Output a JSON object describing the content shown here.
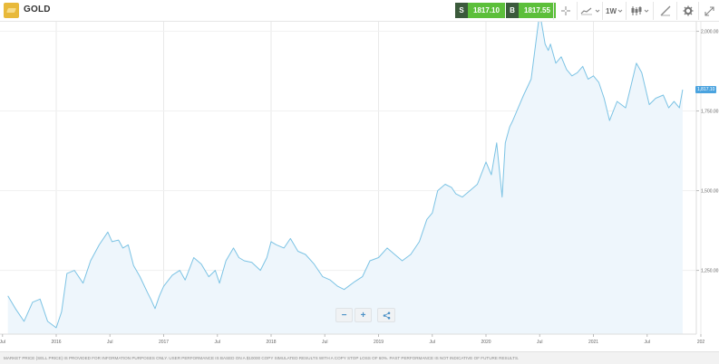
{
  "header": {
    "instrument": "GOLD",
    "sell_label": "S",
    "sell_price": "1817.10",
    "buy_label": "B",
    "buy_price": "1817.55",
    "timeframe": "1W"
  },
  "colors": {
    "sell_dark": "#3b5a3b",
    "price_green": "#5cbf3a",
    "line": "#7cc3e4",
    "area": "#eef6fc",
    "badge": "#4aa3df"
  },
  "icons": [
    "gold-logo-icon",
    "crosshair-icon",
    "chart-type-icon",
    "chevron-down-icon",
    "candles-icon",
    "draw-tool-icon",
    "gear-icon",
    "expand-icon",
    "zoom-out-icon",
    "zoom-in-icon",
    "share-icon"
  ],
  "chart_data": {
    "type": "area",
    "x_ticks": [
      "Jul",
      "2016",
      "Jul",
      "2017",
      "Jul",
      "2018",
      "Jul",
      "2019",
      "Jul",
      "2020",
      "Jul",
      "2021",
      "Jul",
      "202"
    ],
    "y_ticks": [
      "2,000.00",
      "1,750.00",
      "1,500.00",
      "1,250.00"
    ],
    "y_tick_values": [
      2000,
      1750,
      1500,
      1250
    ],
    "ylim": [
      1050,
      2030
    ],
    "current_price_label": "1,817.10",
    "current_price": 1817.1,
    "x": [
      2015.55,
      2015.62,
      2015.7,
      2015.78,
      2015.85,
      2015.92,
      2016.0,
      2016.05,
      2016.1,
      2016.17,
      2016.25,
      2016.32,
      2016.4,
      2016.48,
      2016.52,
      2016.58,
      2016.62,
      2016.67,
      2016.72,
      2016.78,
      2016.85,
      2016.88,
      2016.92,
      2016.96,
      2017.0,
      2017.08,
      2017.15,
      2017.2,
      2017.28,
      2017.35,
      2017.42,
      2017.48,
      2017.52,
      2017.58,
      2017.65,
      2017.7,
      2017.75,
      2017.82,
      2017.9,
      2017.96,
      2018.0,
      2018.05,
      2018.12,
      2018.18,
      2018.25,
      2018.32,
      2018.4,
      2018.48,
      2018.55,
      2018.62,
      2018.68,
      2018.72,
      2018.78,
      2018.85,
      2018.92,
      2019.0,
      2019.08,
      2019.15,
      2019.22,
      2019.3,
      2019.38,
      2019.45,
      2019.5,
      2019.55,
      2019.62,
      2019.68,
      2019.72,
      2019.78,
      2019.85,
      2019.92,
      2020.0,
      2020.05,
      2020.1,
      2020.15,
      2020.18,
      2020.22,
      2020.25,
      2020.3,
      2020.35,
      2020.42,
      2020.5,
      2020.55,
      2020.58,
      2020.6,
      2020.65,
      2020.7,
      2020.75,
      2020.8,
      2020.85,
      2020.9,
      2020.95,
      2021.0,
      2021.05,
      2021.1,
      2021.15,
      2021.22,
      2021.3,
      2021.35,
      2021.4,
      2021.45,
      2021.52,
      2021.58,
      2021.65,
      2021.7,
      2021.75,
      2021.8,
      2021.83
    ],
    "series": [
      {
        "values": [
          1170,
          1130,
          1090,
          1150,
          1160,
          1090,
          1070,
          1120,
          1240,
          1250,
          1210,
          1280,
          1330,
          1370,
          1340,
          1345,
          1320,
          1330,
          1265,
          1230,
          1180,
          1160,
          1130,
          1170,
          1200,
          1235,
          1250,
          1220,
          1290,
          1270,
          1230,
          1250,
          1210,
          1280,
          1320,
          1290,
          1280,
          1275,
          1250,
          1290,
          1340,
          1330,
          1320,
          1350,
          1310,
          1300,
          1270,
          1230,
          1220,
          1200,
          1190,
          1200,
          1215,
          1230,
          1280,
          1290,
          1320,
          1300,
          1280,
          1300,
          1340,
          1410,
          1430,
          1500,
          1520,
          1510,
          1490,
          1480,
          1500,
          1520,
          1590,
          1550,
          1650,
          1480,
          1650,
          1700,
          1720,
          1760,
          1800,
          1850,
          2060,
          1960,
          1940,
          1960,
          1900,
          1920,
          1880,
          1860,
          1870,
          1890,
          1850,
          1860,
          1840,
          1790,
          1720,
          1780,
          1760,
          1830,
          1900,
          1870,
          1770,
          1790,
          1800,
          1760,
          1780,
          1760,
          1817
        ]
      }
    ]
  },
  "zoom": {
    "minus": "−",
    "plus": "+"
  },
  "footer": {
    "disclaimer": "MARKET PRICE (SELL PRICE) IS PROVIDED FOR INFORMATION PURPOSES ONLY. USER PERFORMANCE IS BASED ON A $10000 COPY SIMULATED RESULTS WITH A COPY STOP LOSS OF 60%. PAST PERFORMANCE IS NOT INDICATIVE OF FUTURE RESULTS."
  }
}
